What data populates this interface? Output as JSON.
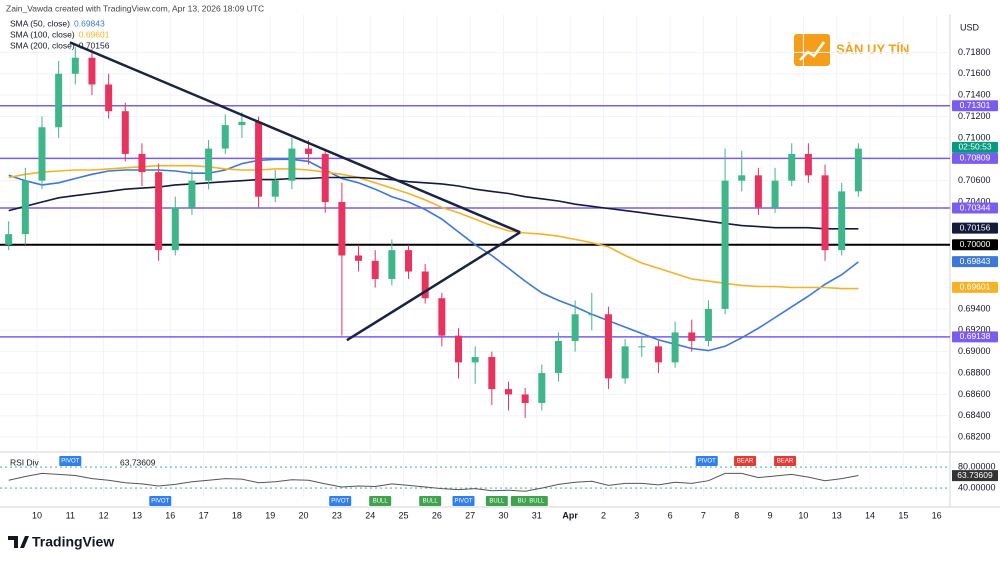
{
  "chart_data": {
    "type": "candlestick",
    "header": "Zain_Vawda created with TradingView.com, Apr 13, 2026 18:09 UTC",
    "currency": "USD",
    "watermark": "SÀN UY TÍN",
    "footer": "TradingView",
    "grid": true,
    "up_color": "#3fb58a",
    "down_color": "#e8335f",
    "xlim": [
      -1.11,
      27.4
    ],
    "xticks": [
      {
        "value": 0,
        "label": "10"
      },
      {
        "value": 1,
        "label": "11"
      },
      {
        "value": 2,
        "label": "12"
      },
      {
        "value": 3,
        "label": "13"
      },
      {
        "value": 4,
        "label": "16"
      },
      {
        "value": 5,
        "label": "17"
      },
      {
        "value": 6,
        "label": "18"
      },
      {
        "value": 7,
        "label": "19"
      },
      {
        "value": 8,
        "label": "20"
      },
      {
        "value": 9,
        "label": "23"
      },
      {
        "value": 10,
        "label": "24"
      },
      {
        "value": 11,
        "label": "25"
      },
      {
        "value": 12,
        "label": "26"
      },
      {
        "value": 13,
        "label": "27"
      },
      {
        "value": 14,
        "label": "30"
      },
      {
        "value": 15,
        "label": "31"
      },
      {
        "value": 16,
        "label": "Apr"
      },
      {
        "value": 17,
        "label": "2"
      },
      {
        "value": 18,
        "label": "3"
      },
      {
        "value": 19,
        "label": "6"
      },
      {
        "value": 20,
        "label": "7"
      },
      {
        "value": 21,
        "label": "8"
      },
      {
        "value": 22,
        "label": "9"
      },
      {
        "value": 23,
        "label": "10"
      },
      {
        "value": 24,
        "label": "13"
      },
      {
        "value": 25,
        "label": "14"
      },
      {
        "value": 26,
        "label": "15"
      },
      {
        "value": 27,
        "label": "16"
      }
    ],
    "ylim": [
      0.6808,
      0.7215
    ],
    "yticks": [
      {
        "value": 0.718,
        "label": "0.71800"
      },
      {
        "value": 0.716,
        "label": "0.71600"
      },
      {
        "value": 0.714,
        "label": "0.71400"
      },
      {
        "value": 0.712,
        "label": "0.71200"
      },
      {
        "value": 0.71,
        "label": "0.71000"
      },
      {
        "value": 0.706,
        "label": "0.70600"
      },
      {
        "value": 0.704,
        "label": "0.70400"
      },
      {
        "value": 0.694,
        "label": "0.69400"
      },
      {
        "value": 0.692,
        "label": "0.69200"
      },
      {
        "value": 0.69,
        "label": "0.69000"
      },
      {
        "value": 0.688,
        "label": "0.68800"
      },
      {
        "value": 0.686,
        "label": "0.68600"
      },
      {
        "value": 0.684,
        "label": "0.68400"
      },
      {
        "value": 0.682,
        "label": "0.68200"
      }
    ],
    "x": [
      -0.85,
      -0.35,
      0.15,
      0.65,
      1.15,
      1.65,
      2.15,
      2.65,
      3.15,
      3.65,
      4.15,
      4.65,
      5.15,
      5.65,
      6.15,
      6.65,
      7.15,
      7.65,
      8.15,
      8.65,
      9.15,
      9.65,
      10.15,
      10.65,
      11.15,
      11.65,
      12.15,
      12.65,
      13.15,
      13.65,
      14.15,
      14.65,
      15.15,
      15.65,
      16.15,
      16.65,
      17.15,
      17.65,
      18.15,
      18.65,
      19.15,
      19.65,
      20.15,
      20.65,
      21.15,
      21.65,
      22.15,
      22.65,
      23.15,
      23.65,
      24.15,
      24.65
    ],
    "open": [
      0.7,
      0.701,
      0.706,
      0.711,
      0.716,
      0.7175,
      0.715,
      0.7125,
      0.7085,
      0.7068,
      0.6995,
      0.7035,
      0.706,
      0.709,
      0.7112,
      0.7115,
      0.7045,
      0.706,
      0.709,
      0.7085,
      0.704,
      0.699,
      0.6985,
      0.6968,
      0.6995,
      0.6975,
      0.695,
      0.6915,
      0.689,
      0.6895,
      0.6865,
      0.686,
      0.6852,
      0.688,
      0.691,
      0.6935,
      0.6935,
      0.6875,
      0.6905,
      0.6905,
      0.689,
      0.6918,
      0.691,
      0.694,
      0.706,
      0.7065,
      0.7035,
      0.706,
      0.7085,
      0.7065,
      0.6995,
      0.705
    ],
    "high": [
      0.7022,
      0.7072,
      0.712,
      0.7172,
      0.7185,
      0.7183,
      0.716,
      0.7133,
      0.7095,
      0.7076,
      0.7045,
      0.707,
      0.7098,
      0.7122,
      0.7124,
      0.712,
      0.707,
      0.71,
      0.7098,
      0.709,
      0.7058,
      0.7,
      0.6995,
      0.7005,
      0.7,
      0.6982,
      0.6955,
      0.6922,
      0.6905,
      0.69,
      0.6872,
      0.6866,
      0.6888,
      0.6918,
      0.6948,
      0.6955,
      0.6942,
      0.6912,
      0.6915,
      0.691,
      0.6928,
      0.693,
      0.6948,
      0.709,
      0.7088,
      0.7072,
      0.7072,
      0.7095,
      0.7095,
      0.7075,
      0.7058,
      0.7095
    ],
    "low": [
      0.6995,
      0.7,
      0.7052,
      0.71,
      0.715,
      0.714,
      0.7118,
      0.7078,
      0.7055,
      0.6985,
      0.699,
      0.7028,
      0.7052,
      0.7085,
      0.71,
      0.7035,
      0.704,
      0.7052,
      0.7075,
      0.703,
      0.6915,
      0.6975,
      0.696,
      0.6962,
      0.6968,
      0.6945,
      0.6905,
      0.6875,
      0.687,
      0.685,
      0.6845,
      0.6838,
      0.6845,
      0.6872,
      0.69,
      0.692,
      0.6865,
      0.687,
      0.6895,
      0.688,
      0.6885,
      0.69,
      0.6905,
      0.6935,
      0.705,
      0.7028,
      0.703,
      0.7055,
      0.7058,
      0.6985,
      0.699,
      0.7045
    ],
    "close": [
      0.701,
      0.706,
      0.711,
      0.716,
      0.7175,
      0.715,
      0.7125,
      0.7085,
      0.7068,
      0.6995,
      0.7035,
      0.706,
      0.709,
      0.7112,
      0.7115,
      0.7045,
      0.706,
      0.709,
      0.7085,
      0.704,
      0.699,
      0.6985,
      0.6968,
      0.6995,
      0.6975,
      0.695,
      0.6915,
      0.689,
      0.6895,
      0.6865,
      0.686,
      0.6852,
      0.688,
      0.691,
      0.6935,
      0.6935,
      0.6875,
      0.6905,
      0.6905,
      0.689,
      0.6918,
      0.691,
      0.694,
      0.706,
      0.7065,
      0.7035,
      0.706,
      0.7085,
      0.7065,
      0.6995,
      0.705,
      0.709
    ],
    "series": [
      {
        "name": "SMA (50, close)",
        "color": "#3d78d8",
        "last_value": 0.69843,
        "last_label": "0.69843",
        "values": [
          0.7065,
          0.706,
          0.7056,
          0.7058,
          0.7062,
          0.7066,
          0.7069,
          0.707,
          0.707,
          0.707,
          0.7069,
          0.7067,
          0.7067,
          0.707,
          0.7076,
          0.7079,
          0.708,
          0.708,
          0.7078,
          0.707,
          0.7062,
          0.7058,
          0.7052,
          0.7045,
          0.704,
          0.7033,
          0.7024,
          0.7012,
          0.7,
          0.699,
          0.6978,
          0.6966,
          0.6955,
          0.6948,
          0.6942,
          0.6935,
          0.6929,
          0.6923,
          0.6917,
          0.6911,
          0.6907,
          0.6903,
          0.6901,
          0.6905,
          0.6913,
          0.6922,
          0.6932,
          0.6942,
          0.6952,
          0.6963,
          0.6972,
          0.6984
        ]
      },
      {
        "name": "SMA (100, close)",
        "color": "#f5b324",
        "last_value": 0.69601,
        "last_label": "0.69601",
        "values": [
          0.7063,
          0.7066,
          0.7068,
          0.7069,
          0.707,
          0.707,
          0.7071,
          0.7072,
          0.7073,
          0.7074,
          0.7074,
          0.7074,
          0.7073,
          0.7071,
          0.707,
          0.707,
          0.7071,
          0.7071,
          0.707,
          0.7068,
          0.7066,
          0.7063,
          0.7058,
          0.7053,
          0.7048,
          0.7042,
          0.7035,
          0.703,
          0.7024,
          0.7018,
          0.7013,
          0.7011,
          0.701,
          0.7008,
          0.7005,
          0.7002,
          0.6998,
          0.699,
          0.6983,
          0.6978,
          0.6973,
          0.6968,
          0.6966,
          0.6964,
          0.6962,
          0.6961,
          0.6961,
          0.696,
          0.696,
          0.696,
          0.6959,
          0.6959
        ]
      },
      {
        "name": "SMA (200, close)",
        "color": "#131a3a",
        "last_value": 0.70156,
        "last_label": "0.70156",
        "values": [
          0.7032,
          0.7036,
          0.704,
          0.7044,
          0.7046,
          0.7048,
          0.705,
          0.7052,
          0.7053,
          0.7054,
          0.7056,
          0.7057,
          0.7058,
          0.7059,
          0.706,
          0.7061,
          0.7061,
          0.7062,
          0.7062,
          0.7063,
          0.7063,
          0.7063,
          0.7062,
          0.7061,
          0.7059,
          0.7058,
          0.7057,
          0.7055,
          0.7052,
          0.705,
          0.7048,
          0.7045,
          0.7043,
          0.7041,
          0.7038,
          0.7036,
          0.7034,
          0.7032,
          0.703,
          0.7028,
          0.7026,
          0.7024,
          0.7022,
          0.702,
          0.7018,
          0.7017,
          0.7016,
          0.7016,
          0.7016,
          0.7015,
          0.7015,
          0.7015
        ]
      }
    ],
    "levels": [
      {
        "value": 0.71301,
        "label": "0.71301",
        "color": "#7b5cf0"
      },
      {
        "value": 0.70809,
        "label": "0.70809",
        "color": "#7b5cf0"
      },
      {
        "value": 0.70344,
        "label": "0.70344",
        "color": "#7b5cf0"
      },
      {
        "value": 0.7,
        "label": "0.70000",
        "color": "#000000"
      },
      {
        "value": 0.69138,
        "label": "0.69138",
        "color": "#7b5cf0"
      }
    ],
    "current": {
      "price": 0.70911,
      "countdown": "02:50:53",
      "color": "#089981"
    },
    "trendlines": [
      {
        "x": [
          0.99,
          14.5
        ],
        "y": [
          0.71894,
          0.70117
        ],
        "color": "#1a2340"
      },
      {
        "x": [
          9.3,
          14.5
        ],
        "y": [
          0.69107,
          0.70117
        ],
        "color": "#1a2340"
      }
    ],
    "rsi": {
      "name": "RSI Div",
      "value": 63.73609,
      "value_label": "63.73609",
      "color": "#555555",
      "ylim": [
        23,
        103
      ],
      "yticks": [
        {
          "value": 80,
          "label": "80.00000"
        },
        {
          "value": 40,
          "label": "40.00000"
        }
      ],
      "values": [
        55,
        62,
        68,
        66,
        64,
        58,
        55,
        50,
        48,
        44,
        47,
        52,
        55,
        58,
        57,
        50,
        52,
        56,
        55,
        48,
        42,
        44,
        43,
        48,
        45,
        42,
        39,
        37,
        39,
        35,
        36,
        34,
        40,
        47,
        51,
        53,
        45,
        49,
        49,
        46,
        51,
        49,
        54,
        68,
        68,
        60,
        63,
        66,
        61,
        54,
        58,
        64
      ],
      "signals": [
        {
          "label": "PIVOT",
          "x": 1.0,
          "position": "above",
          "color": "#2f7ff0"
        },
        {
          "label": "PIVOT",
          "x": 3.7,
          "position": "below",
          "color": "#2f7ff0"
        },
        {
          "label": "PIVOT",
          "x": 9.1,
          "position": "below",
          "color": "#2f7ff0"
        },
        {
          "label": "BULL",
          "x": 10.3,
          "position": "below",
          "color": "#3fa34d"
        },
        {
          "label": "BULL",
          "x": 11.8,
          "position": "below",
          "color": "#3fa34d"
        },
        {
          "label": "PIVOT",
          "x": 12.8,
          "position": "below",
          "color": "#2f7ff0"
        },
        {
          "label": "BULL",
          "x": 13.8,
          "position": "below",
          "color": "#3fa34d"
        },
        {
          "label": "BU",
          "x": 14.55,
          "position": "below",
          "color": "#3fa34d"
        },
        {
          "label": "BULL",
          "x": 15.0,
          "position": "below",
          "color": "#3fa34d"
        },
        {
          "label": "PIVOT",
          "x": 20.1,
          "position": "above",
          "color": "#2f7ff0"
        },
        {
          "label": "BEAR",
          "x": 21.25,
          "position": "above",
          "color": "#e53935"
        },
        {
          "label": "BEAR",
          "x": 22.45,
          "position": "above",
          "color": "#e53935"
        }
      ]
    }
  }
}
